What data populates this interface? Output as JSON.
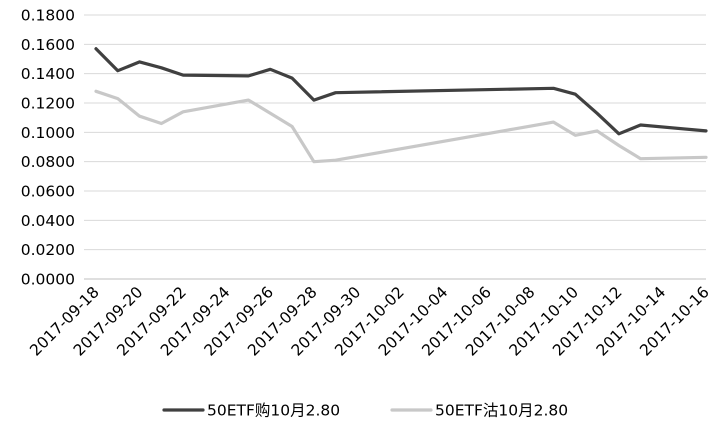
{
  "chart_data": {
    "type": "line",
    "title": "",
    "xlabel": "",
    "ylabel": "",
    "ylim": [
      0,
      0.18
    ],
    "yticks": [
      "0.0000",
      "0.0200",
      "0.0400",
      "0.0600",
      "0.0800",
      "0.1000",
      "0.1200",
      "0.1400",
      "0.1600",
      "0.1800"
    ],
    "xticks": [
      "2017-09-18",
      "2017-09-20",
      "2017-09-22",
      "2017-09-24",
      "2017-09-26",
      "2017-09-28",
      "2017-09-30",
      "2017-10-02",
      "2017-10-04",
      "2017-10-06",
      "2017-10-08",
      "2017-10-10",
      "2017-10-12",
      "2017-10-14",
      "2017-10-16"
    ],
    "grid": "horizontal",
    "legend_position": "bottom",
    "series": [
      {
        "name": "50ETF购10月2.80",
        "color": "#404040",
        "x": [
          "2017-09-18",
          "2017-09-19",
          "2017-09-20",
          "2017-09-21",
          "2017-09-22",
          "2017-09-25",
          "2017-09-26",
          "2017-09-27",
          "2017-09-28",
          "2017-09-29",
          "2017-10-09",
          "2017-10-10",
          "2017-10-11",
          "2017-10-12",
          "2017-10-13",
          "2017-10-16"
        ],
        "values": [
          0.157,
          0.142,
          0.148,
          0.144,
          0.139,
          0.1385,
          0.143,
          0.137,
          0.122,
          0.127,
          0.13,
          0.126,
          0.113,
          0.099,
          0.105,
          0.101
        ]
      },
      {
        "name": "50ETF沽10月2.80",
        "color": "#c8c8c8",
        "x": [
          "2017-09-18",
          "2017-09-19",
          "2017-09-20",
          "2017-09-21",
          "2017-09-22",
          "2017-09-25",
          "2017-09-26",
          "2017-09-27",
          "2017-09-28",
          "2017-09-29",
          "2017-10-09",
          "2017-10-10",
          "2017-10-11",
          "2017-10-12",
          "2017-10-13",
          "2017-10-16"
        ],
        "values": [
          0.128,
          0.123,
          0.111,
          0.106,
          0.114,
          0.122,
          0.113,
          0.104,
          0.08,
          0.081,
          0.107,
          0.098,
          0.101,
          0.091,
          0.082,
          0.083
        ]
      }
    ]
  }
}
